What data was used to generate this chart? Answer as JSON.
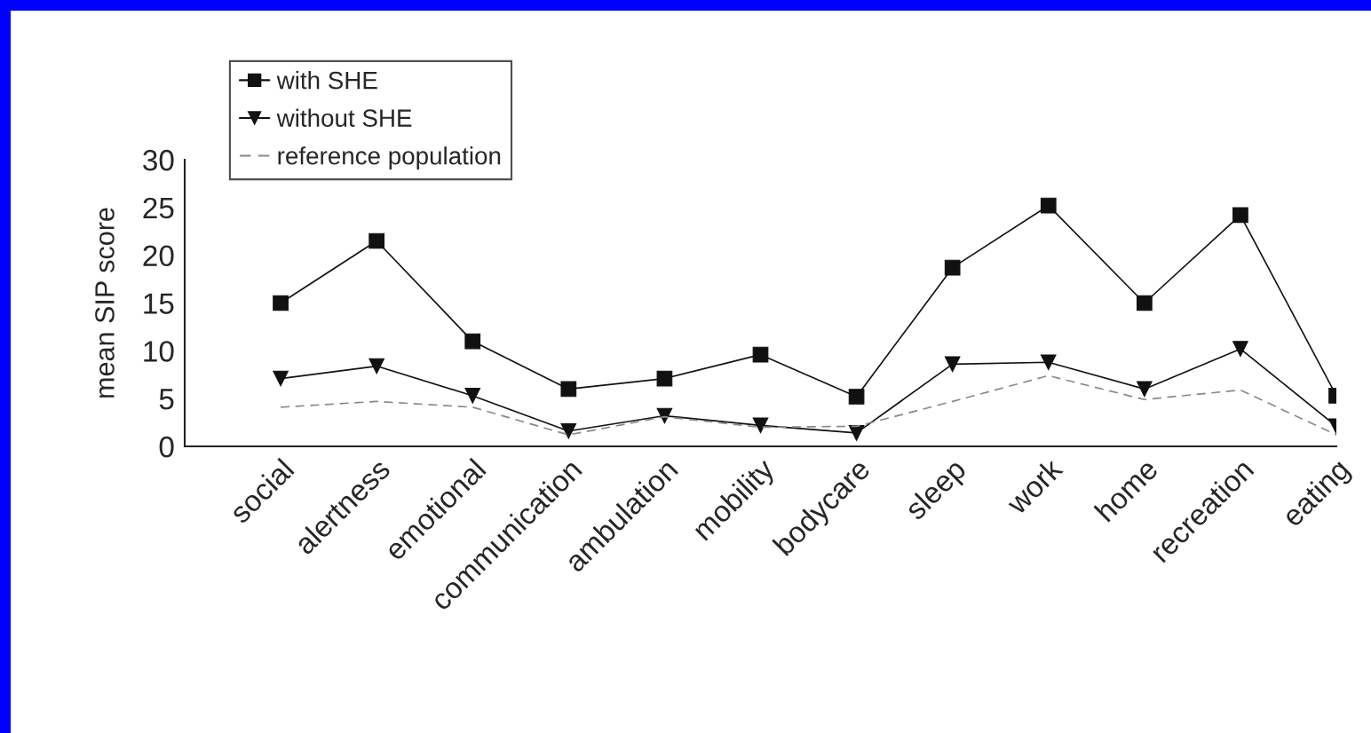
{
  "chart_data": {
    "type": "line",
    "ylabel": "mean SIP score",
    "categories": [
      "social",
      "alertness",
      "emotional",
      "communication",
      "ambulation",
      "mobility",
      "bodycare",
      "sleep",
      "work",
      "home",
      "recreation",
      "eating"
    ],
    "series": [
      {
        "name": "with SHE",
        "color": "#111111",
        "marker": "square",
        "line_style": "solid",
        "values": [
          15.0,
          21.5,
          11.0,
          6.0,
          7.1,
          9.6,
          5.2,
          18.7,
          25.2,
          15.0,
          24.2,
          5.3
        ]
      },
      {
        "name": "without SHE",
        "color": "#111111",
        "marker": "triangle",
        "line_style": "solid",
        "values": [
          7.1,
          8.4,
          5.3,
          1.6,
          3.2,
          2.2,
          1.4,
          8.6,
          8.8,
          6.0,
          10.2,
          2.1
        ]
      },
      {
        "name": "reference population",
        "color": "#888888",
        "marker": "none",
        "line_style": "dashed",
        "values": [
          4.1,
          4.7,
          4.1,
          1.2,
          3.1,
          2.0,
          2.1,
          4.7,
          7.4,
          4.9,
          5.9,
          1.2
        ]
      }
    ],
    "ylim": [
      0,
      30
    ],
    "yticks": [
      0,
      5,
      10,
      15,
      20,
      25,
      30
    ],
    "grid": false,
    "legend": "top left"
  }
}
